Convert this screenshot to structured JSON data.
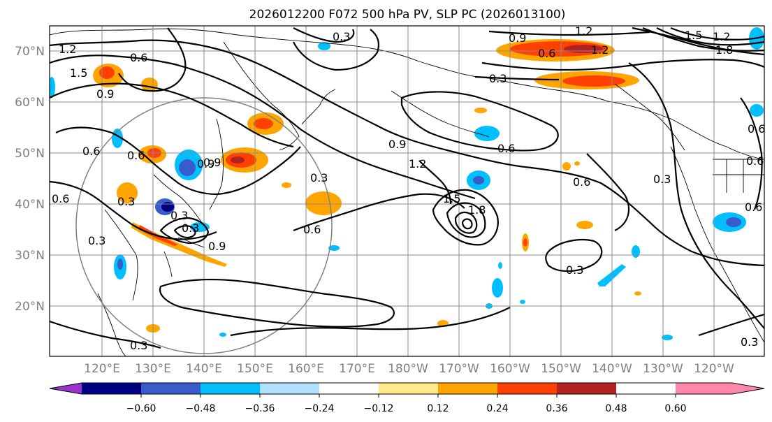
{
  "title": "2026012200 F072 500 hPa PV, SLP PC (2026013100)",
  "lat_ticks": [
    "70°N",
    "60°N",
    "50°N",
    "40°N",
    "30°N",
    "20°N"
  ],
  "lon_ticks": [
    "120°E",
    "130°E",
    "140°E",
    "150°E",
    "160°E",
    "170°E",
    "180°W",
    "170°W",
    "160°W",
    "150°W",
    "140°W",
    "130°W",
    "120°W"
  ],
  "colorbar": {
    "ticks": [
      "−0.60",
      "−0.48",
      "−0.36",
      "−0.24",
      "−0.12",
      "0.12",
      "0.24",
      "0.36",
      "0.48",
      "0.60"
    ],
    "colors": [
      "#9933cc",
      "#000080",
      "#3a5bcc",
      "#00bfff",
      "#b0e0ff",
      "#ffffff",
      "#ffe98a",
      "#ffa500",
      "#ff4000",
      "#b22222",
      "#ff88aa"
    ]
  },
  "contour_labels": [
    "0.3",
    "1.2",
    "1.2",
    "0.9",
    "0.6",
    "1.5",
    "0.9",
    "0.6",
    "0.3",
    "1.2",
    "1.8",
    "1.5",
    "0.9",
    "0.6",
    "0.6",
    "0.9",
    "0.3",
    "0.6",
    "0.9",
    "1.2",
    "0.3",
    "0.6",
    "0.6",
    "1.5",
    "1.8",
    "0.6",
    "0.3",
    "0.3",
    "0.3",
    "0.6",
    "0.6",
    "0.3",
    "0.3",
    "0.6",
    "0.9",
    "1.2",
    "0.3",
    "0.3"
  ],
  "colors": {
    "grid": "#8c8c8c",
    "tick_text": "#7f7f7f",
    "circle": "#7f7f7f"
  }
}
